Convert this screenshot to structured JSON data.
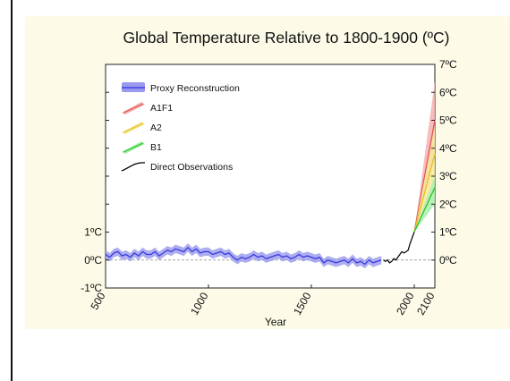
{
  "chart_data": {
    "type": "line",
    "title": "Global Temperature Relative to 1800-1900 (ºC)",
    "xlabel": "Year",
    "ylabel": "",
    "xlim": [
      500,
      2100
    ],
    "ylim": [
      -1,
      7
    ],
    "x_ticks": [
      "500",
      "1000",
      "1500",
      "2000",
      "2100"
    ],
    "x_tick_values": [
      500,
      1000,
      1500,
      2000,
      2100
    ],
    "y_left_ticks": [
      "1ºC",
      "0ºC",
      "-1ºC"
    ],
    "y_left_tick_values": [
      1,
      0,
      -1
    ],
    "y_right_ticks": [
      "7ºC",
      "6ºC",
      "5ºC",
      "4ºC",
      "3ºC",
      "2ºC",
      "1ºC",
      "0ºC"
    ],
    "y_right_tick_values": [
      7,
      6,
      5,
      4,
      3,
      2,
      1,
      0
    ],
    "legend_placement": "top-left",
    "grid": false,
    "series": [
      {
        "name": "Proxy Reconstruction",
        "color": "#3333dd",
        "band_color": "#9999ee",
        "band_half_width": 0.15,
        "x": [
          500,
          520,
          540,
          560,
          580,
          600,
          620,
          640,
          660,
          680,
          700,
          720,
          740,
          760,
          780,
          800,
          820,
          840,
          860,
          880,
          900,
          920,
          940,
          960,
          980,
          1000,
          1020,
          1040,
          1060,
          1080,
          1100,
          1120,
          1140,
          1160,
          1180,
          1200,
          1220,
          1240,
          1260,
          1280,
          1300,
          1320,
          1340,
          1360,
          1380,
          1400,
          1420,
          1440,
          1460,
          1480,
          1500,
          1520,
          1540,
          1560,
          1580,
          1600,
          1620,
          1640,
          1660,
          1680,
          1700,
          1720,
          1740,
          1760,
          1780,
          1800,
          1820,
          1840
        ],
        "values": [
          0.2,
          0.1,
          0.25,
          0.3,
          0.15,
          0.2,
          0.1,
          0.25,
          0.15,
          0.3,
          0.2,
          0.2,
          0.3,
          0.15,
          0.25,
          0.35,
          0.3,
          0.4,
          0.35,
          0.3,
          0.45,
          0.3,
          0.4,
          0.25,
          0.3,
          0.3,
          0.2,
          0.25,
          0.3,
          0.2,
          0.25,
          0.1,
          0.0,
          0.1,
          0.05,
          0.1,
          0.2,
          0.1,
          0.15,
          0.05,
          0.1,
          0.15,
          0.2,
          0.1,
          0.15,
          0.05,
          0.1,
          0.2,
          0.1,
          0.15,
          0.1,
          0.05,
          0.1,
          -0.1,
          0.0,
          -0.05,
          -0.1,
          -0.05,
          0.0,
          -0.1,
          0.05,
          -0.1,
          -0.05,
          -0.15,
          0.0,
          -0.1,
          -0.05,
          0.0
        ]
      },
      {
        "name": "A1F1",
        "color": "#e05050",
        "band_color": "#f6b0b0",
        "x": [
          2000,
          2100
        ],
        "values": [
          1.0,
          5.0
        ],
        "band_low": [
          1.0,
          3.8
        ],
        "band_high": [
          1.0,
          6.4
        ]
      },
      {
        "name": "A2",
        "color": "#e0c020",
        "band_color": "#f6e79a",
        "x": [
          2000,
          2100
        ],
        "values": [
          1.0,
          3.8
        ],
        "band_low": [
          1.0,
          2.8
        ],
        "band_high": [
          1.0,
          4.8
        ]
      },
      {
        "name": "B1",
        "color": "#22c022",
        "band_color": "#aaeeaa",
        "x": [
          2000,
          2100
        ],
        "values": [
          1.0,
          2.6
        ],
        "band_low": [
          1.0,
          2.0
        ],
        "band_high": [
          1.0,
          3.0
        ]
      },
      {
        "name": "Direct Observations",
        "color": "#000000",
        "x": [
          1850,
          1860,
          1870,
          1880,
          1890,
          1900,
          1910,
          1920,
          1930,
          1940,
          1950,
          1960,
          1970,
          1980,
          1990,
          2000
        ],
        "values": [
          0.0,
          -0.05,
          0.0,
          -0.1,
          -0.05,
          0.05,
          0.0,
          0.1,
          0.2,
          0.3,
          0.25,
          0.3,
          0.35,
          0.6,
          0.8,
          1.0
        ]
      }
    ]
  }
}
